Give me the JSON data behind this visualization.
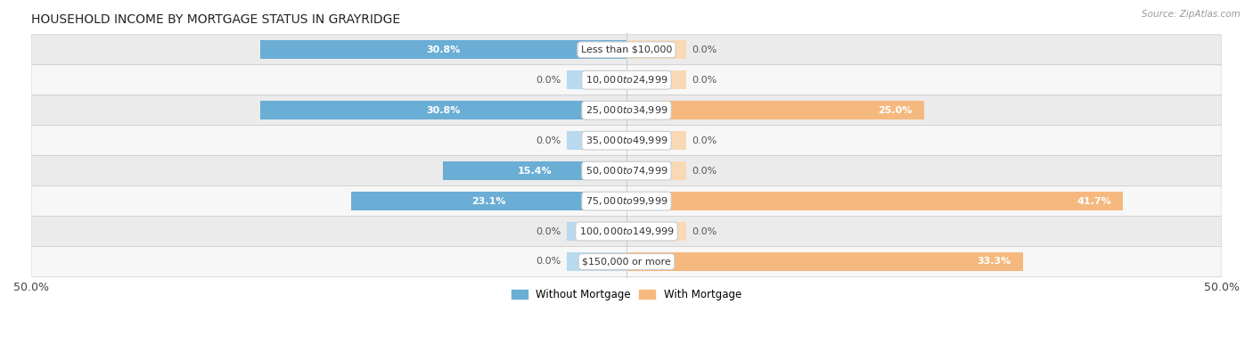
{
  "title": "HOUSEHOLD INCOME BY MORTGAGE STATUS IN GRAYRIDGE",
  "source": "Source: ZipAtlas.com",
  "categories": [
    "Less than $10,000",
    "$10,000 to $24,999",
    "$25,000 to $34,999",
    "$35,000 to $49,999",
    "$50,000 to $74,999",
    "$75,000 to $99,999",
    "$100,000 to $149,999",
    "$150,000 or more"
  ],
  "without_mortgage": [
    30.8,
    0.0,
    30.8,
    0.0,
    15.4,
    23.1,
    0.0,
    0.0
  ],
  "with_mortgage": [
    0.0,
    0.0,
    25.0,
    0.0,
    0.0,
    41.7,
    0.0,
    33.3
  ],
  "color_without": "#6aaed6",
  "color_with": "#f5b97f",
  "color_without_light": "#b8d9ee",
  "color_with_light": "#f9d9b5",
  "bg_odd": "#ebebeb",
  "bg_even": "#f7f7f7",
  "xlim": 50.0,
  "stub_size": 5.0,
  "legend_labels": [
    "Without Mortgage",
    "With Mortgage"
  ],
  "title_fontsize": 10,
  "label_fontsize": 8,
  "cat_fontsize": 8,
  "tick_fontsize": 9,
  "value_label_color_inside": "white",
  "value_label_color_outside": "#555555"
}
